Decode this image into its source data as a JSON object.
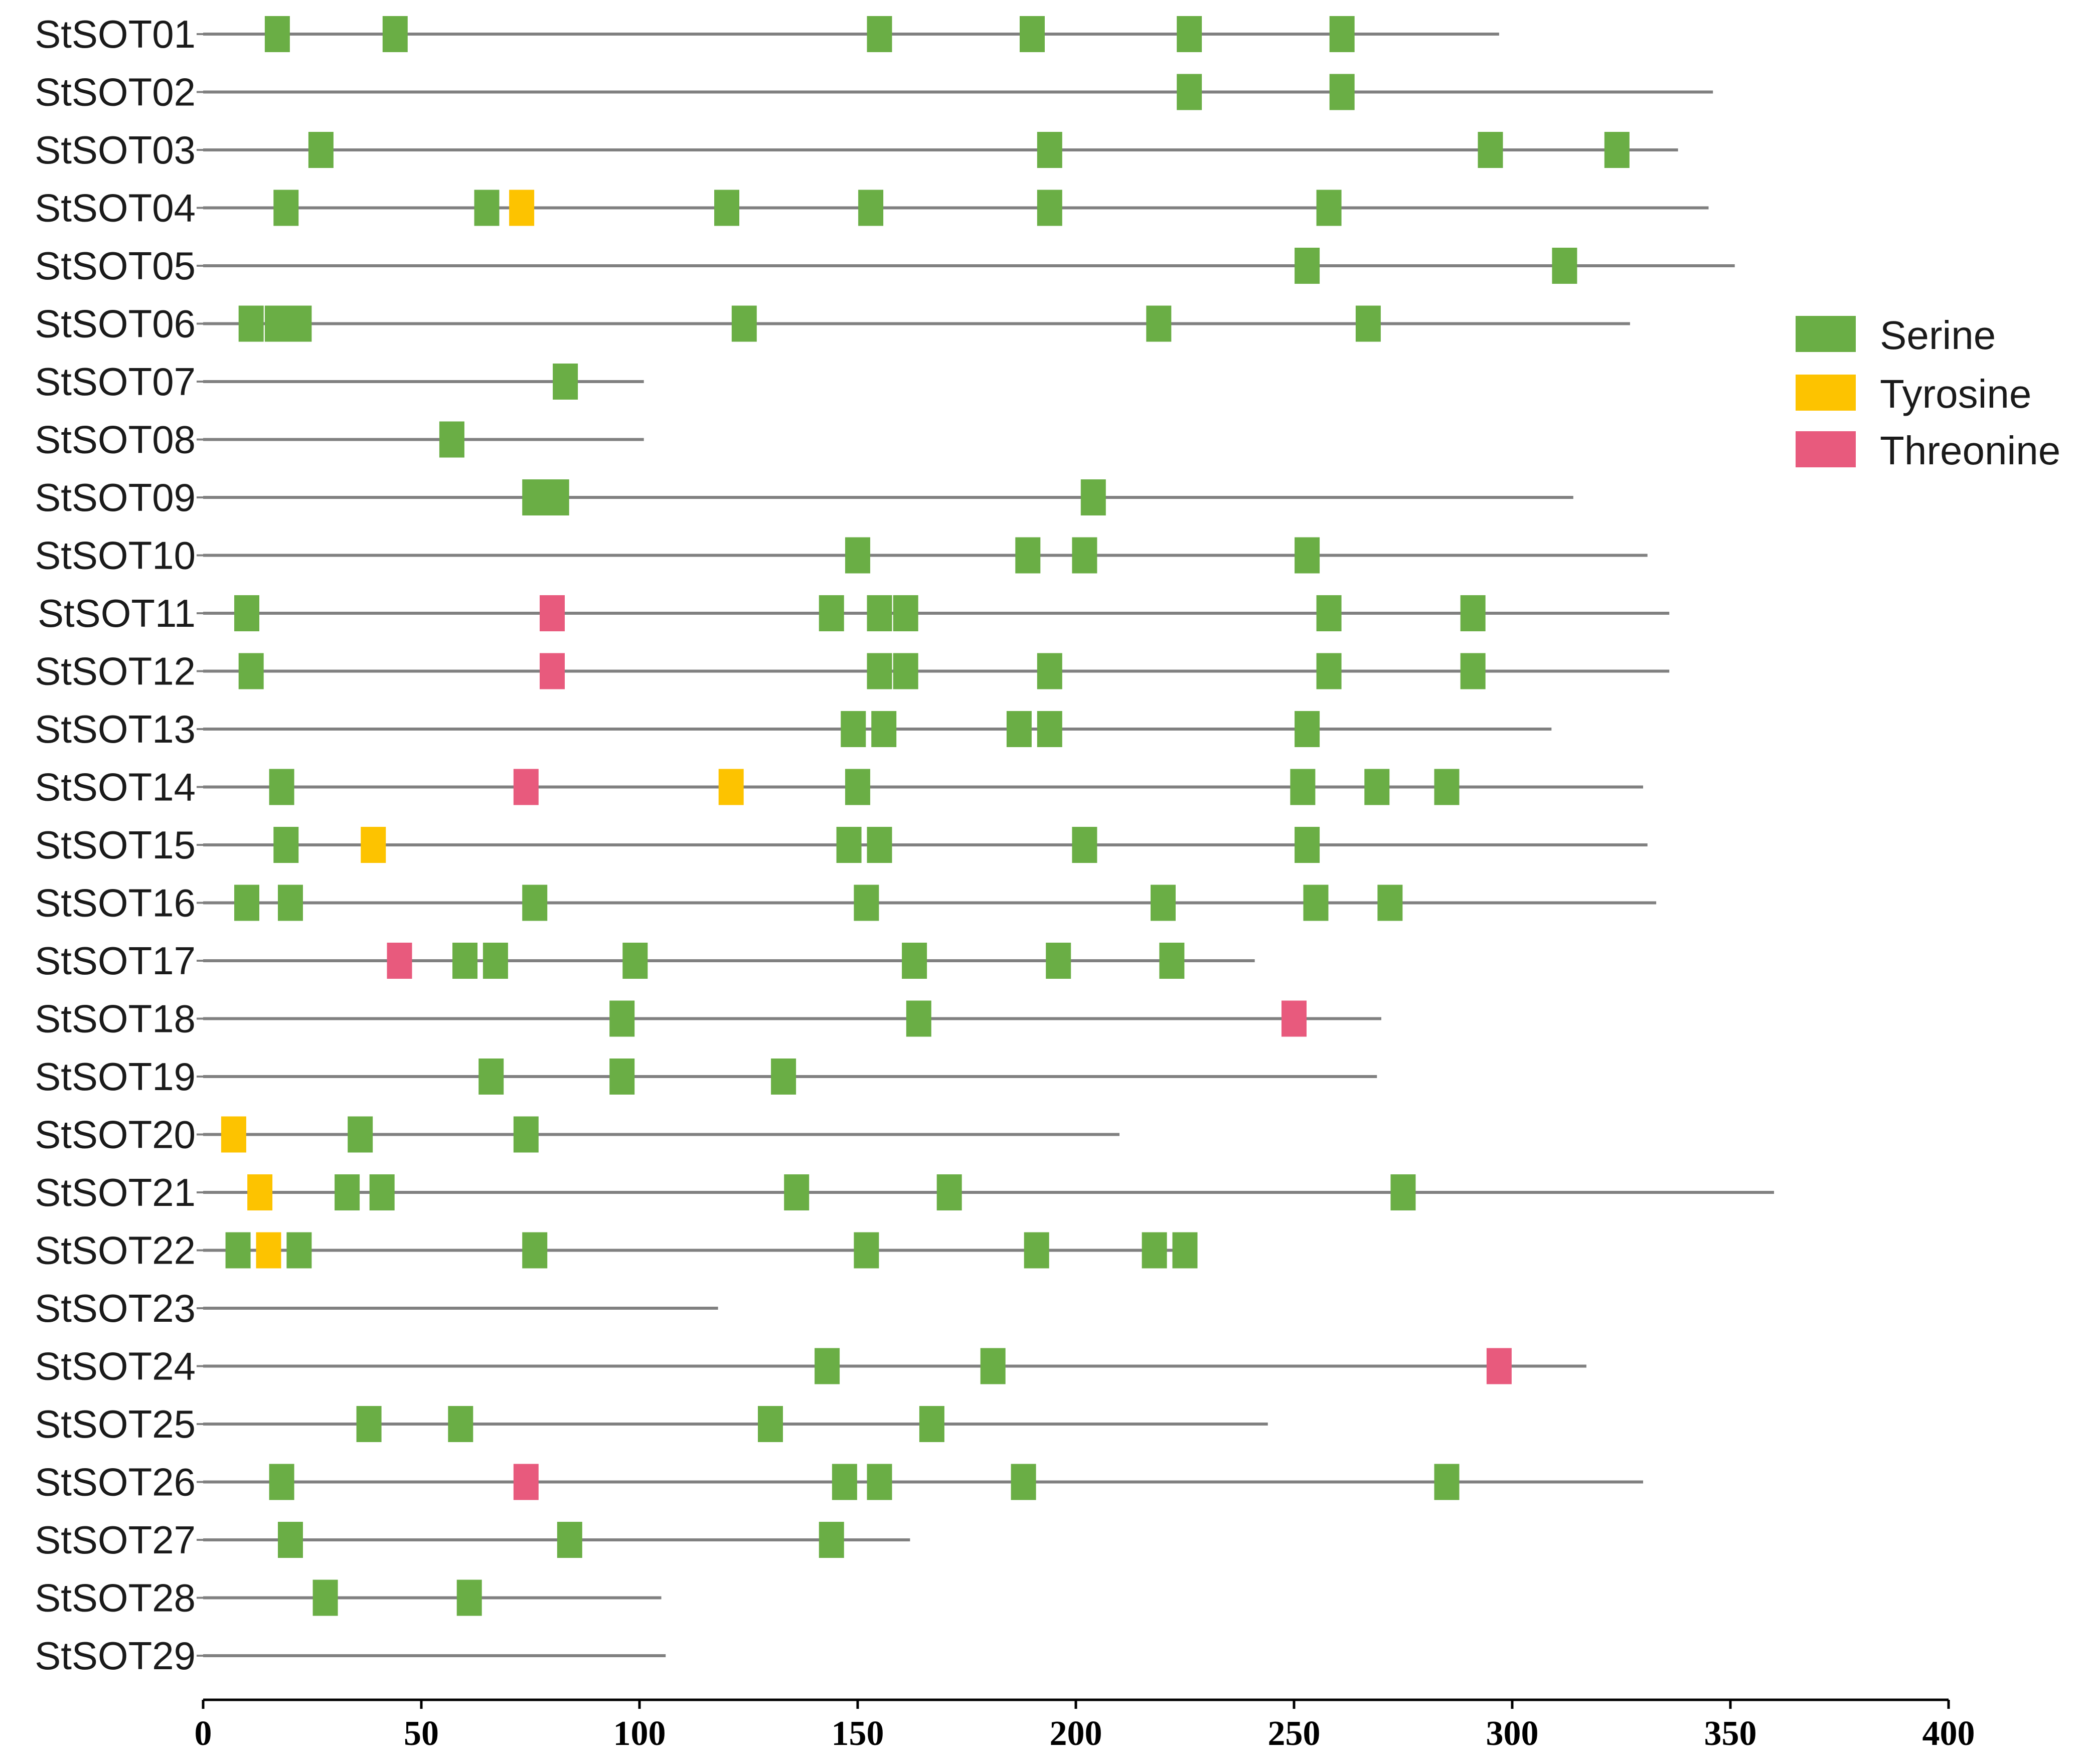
{
  "chart_data": {
    "type": "protein-site-map",
    "title": "",
    "xlabel": "",
    "ylabel": "",
    "xlim": [
      0,
      400
    ],
    "x_ticks": [
      0,
      50,
      100,
      150,
      200,
      250,
      300,
      350,
      400
    ],
    "grid": false,
    "legend_position": "right",
    "legend": [
      {
        "key": "serine",
        "label": "Serine",
        "color": "#6aae45"
      },
      {
        "key": "tyrosine",
        "label": "Tyrosine",
        "color": "#fdc300"
      },
      {
        "key": "threonine",
        "label": "Threonine",
        "color": "#e85a7d"
      }
    ],
    "proteins": [
      {
        "name": "StSOT01",
        "length": 297,
        "sites": [
          {
            "pos": 17,
            "type": "serine"
          },
          {
            "pos": 44,
            "type": "serine"
          },
          {
            "pos": 155,
            "type": "serine"
          },
          {
            "pos": 190,
            "type": "serine"
          },
          {
            "pos": 226,
            "type": "serine"
          },
          {
            "pos": 261,
            "type": "serine"
          }
        ]
      },
      {
        "name": "StSOT02",
        "length": 346,
        "sites": [
          {
            "pos": 226,
            "type": "serine"
          },
          {
            "pos": 261,
            "type": "serine"
          }
        ]
      },
      {
        "name": "StSOT03",
        "length": 338,
        "sites": [
          {
            "pos": 27,
            "type": "serine"
          },
          {
            "pos": 194,
            "type": "serine"
          },
          {
            "pos": 295,
            "type": "serine"
          },
          {
            "pos": 324,
            "type": "serine"
          }
        ]
      },
      {
        "name": "StSOT04",
        "length": 345,
        "sites": [
          {
            "pos": 19,
            "type": "serine"
          },
          {
            "pos": 65,
            "type": "serine"
          },
          {
            "pos": 73,
            "type": "tyrosine"
          },
          {
            "pos": 120,
            "type": "serine"
          },
          {
            "pos": 153,
            "type": "serine"
          },
          {
            "pos": 194,
            "type": "serine"
          },
          {
            "pos": 258,
            "type": "serine"
          }
        ]
      },
      {
        "name": "StSOT05",
        "length": 351,
        "sites": [
          {
            "pos": 253,
            "type": "serine"
          },
          {
            "pos": 312,
            "type": "serine"
          }
        ]
      },
      {
        "name": "StSOT06",
        "length": 327,
        "sites": [
          {
            "pos": 11,
            "type": "serine"
          },
          {
            "pos": 17,
            "type": "serine"
          },
          {
            "pos": 22,
            "type": "serine"
          },
          {
            "pos": 124,
            "type": "serine"
          },
          {
            "pos": 219,
            "type": "serine"
          },
          {
            "pos": 267,
            "type": "serine"
          }
        ]
      },
      {
        "name": "StSOT07",
        "length": 101,
        "sites": [
          {
            "pos": 83,
            "type": "serine"
          }
        ]
      },
      {
        "name": "StSOT08",
        "length": 101,
        "sites": [
          {
            "pos": 57,
            "type": "serine"
          }
        ]
      },
      {
        "name": "StSOT09",
        "length": 314,
        "sites": [
          {
            "pos": 76,
            "type": "serine"
          },
          {
            "pos": 81,
            "type": "serine"
          },
          {
            "pos": 204,
            "type": "serine"
          }
        ]
      },
      {
        "name": "StSOT10",
        "length": 331,
        "sites": [
          {
            "pos": 150,
            "type": "serine"
          },
          {
            "pos": 189,
            "type": "serine"
          },
          {
            "pos": 202,
            "type": "serine"
          },
          {
            "pos": 253,
            "type": "serine"
          }
        ]
      },
      {
        "name": "StSOT11",
        "length": 336,
        "sites": [
          {
            "pos": 10,
            "type": "serine"
          },
          {
            "pos": 80,
            "type": "threonine"
          },
          {
            "pos": 144,
            "type": "serine"
          },
          {
            "pos": 155,
            "type": "serine"
          },
          {
            "pos": 161,
            "type": "serine"
          },
          {
            "pos": 258,
            "type": "serine"
          },
          {
            "pos": 291,
            "type": "serine"
          }
        ]
      },
      {
        "name": "StSOT12",
        "length": 336,
        "sites": [
          {
            "pos": 11,
            "type": "serine"
          },
          {
            "pos": 80,
            "type": "threonine"
          },
          {
            "pos": 155,
            "type": "serine"
          },
          {
            "pos": 161,
            "type": "serine"
          },
          {
            "pos": 194,
            "type": "serine"
          },
          {
            "pos": 258,
            "type": "serine"
          },
          {
            "pos": 291,
            "type": "serine"
          }
        ]
      },
      {
        "name": "StSOT13",
        "length": 309,
        "sites": [
          {
            "pos": 149,
            "type": "serine"
          },
          {
            "pos": 156,
            "type": "serine"
          },
          {
            "pos": 187,
            "type": "serine"
          },
          {
            "pos": 194,
            "type": "serine"
          },
          {
            "pos": 253,
            "type": "serine"
          }
        ]
      },
      {
        "name": "StSOT14",
        "length": 330,
        "sites": [
          {
            "pos": 18,
            "type": "serine"
          },
          {
            "pos": 74,
            "type": "threonine"
          },
          {
            "pos": 121,
            "type": "tyrosine"
          },
          {
            "pos": 150,
            "type": "serine"
          },
          {
            "pos": 252,
            "type": "serine"
          },
          {
            "pos": 269,
            "type": "serine"
          },
          {
            "pos": 285,
            "type": "serine"
          }
        ]
      },
      {
        "name": "StSOT15",
        "length": 331,
        "sites": [
          {
            "pos": 19,
            "type": "serine"
          },
          {
            "pos": 39,
            "type": "tyrosine"
          },
          {
            "pos": 148,
            "type": "serine"
          },
          {
            "pos": 155,
            "type": "serine"
          },
          {
            "pos": 202,
            "type": "serine"
          },
          {
            "pos": 253,
            "type": "serine"
          }
        ]
      },
      {
        "name": "StSOT16",
        "length": 333,
        "sites": [
          {
            "pos": 10,
            "type": "serine"
          },
          {
            "pos": 20,
            "type": "serine"
          },
          {
            "pos": 76,
            "type": "serine"
          },
          {
            "pos": 152,
            "type": "serine"
          },
          {
            "pos": 220,
            "type": "serine"
          },
          {
            "pos": 255,
            "type": "serine"
          },
          {
            "pos": 272,
            "type": "serine"
          }
        ]
      },
      {
        "name": "StSOT17",
        "length": 241,
        "sites": [
          {
            "pos": 45,
            "type": "threonine"
          },
          {
            "pos": 60,
            "type": "serine"
          },
          {
            "pos": 67,
            "type": "serine"
          },
          {
            "pos": 99,
            "type": "serine"
          },
          {
            "pos": 163,
            "type": "serine"
          },
          {
            "pos": 196,
            "type": "serine"
          },
          {
            "pos": 222,
            "type": "serine"
          }
        ]
      },
      {
        "name": "StSOT18",
        "length": 270,
        "sites": [
          {
            "pos": 96,
            "type": "serine"
          },
          {
            "pos": 164,
            "type": "serine"
          },
          {
            "pos": 250,
            "type": "threonine"
          }
        ]
      },
      {
        "name": "StSOT19",
        "length": 269,
        "sites": [
          {
            "pos": 66,
            "type": "serine"
          },
          {
            "pos": 96,
            "type": "serine"
          },
          {
            "pos": 133,
            "type": "serine"
          }
        ]
      },
      {
        "name": "StSOT20",
        "length": 210,
        "sites": [
          {
            "pos": 7,
            "type": "tyrosine"
          },
          {
            "pos": 36,
            "type": "serine"
          },
          {
            "pos": 74,
            "type": "serine"
          }
        ]
      },
      {
        "name": "StSOT21",
        "length": 360,
        "sites": [
          {
            "pos": 13,
            "type": "tyrosine"
          },
          {
            "pos": 33,
            "type": "serine"
          },
          {
            "pos": 41,
            "type": "serine"
          },
          {
            "pos": 136,
            "type": "serine"
          },
          {
            "pos": 171,
            "type": "serine"
          },
          {
            "pos": 275,
            "type": "serine"
          }
        ]
      },
      {
        "name": "StSOT22",
        "length": 226,
        "sites": [
          {
            "pos": 8,
            "type": "serine"
          },
          {
            "pos": 15,
            "type": "tyrosine"
          },
          {
            "pos": 22,
            "type": "serine"
          },
          {
            "pos": 76,
            "type": "serine"
          },
          {
            "pos": 152,
            "type": "serine"
          },
          {
            "pos": 191,
            "type": "serine"
          },
          {
            "pos": 218,
            "type": "serine"
          },
          {
            "pos": 225,
            "type": "serine"
          }
        ]
      },
      {
        "name": "StSOT23",
        "length": 118,
        "sites": []
      },
      {
        "name": "StSOT24",
        "length": 317,
        "sites": [
          {
            "pos": 143,
            "type": "serine"
          },
          {
            "pos": 181,
            "type": "serine"
          },
          {
            "pos": 297,
            "type": "threonine"
          }
        ]
      },
      {
        "name": "StSOT25",
        "length": 244,
        "sites": [
          {
            "pos": 38,
            "type": "serine"
          },
          {
            "pos": 59,
            "type": "serine"
          },
          {
            "pos": 130,
            "type": "serine"
          },
          {
            "pos": 167,
            "type": "serine"
          }
        ]
      },
      {
        "name": "StSOT26",
        "length": 330,
        "sites": [
          {
            "pos": 18,
            "type": "serine"
          },
          {
            "pos": 74,
            "type": "threonine"
          },
          {
            "pos": 147,
            "type": "serine"
          },
          {
            "pos": 155,
            "type": "serine"
          },
          {
            "pos": 188,
            "type": "serine"
          },
          {
            "pos": 285,
            "type": "serine"
          }
        ]
      },
      {
        "name": "StSOT27",
        "length": 162,
        "sites": [
          {
            "pos": 20,
            "type": "serine"
          },
          {
            "pos": 84,
            "type": "serine"
          },
          {
            "pos": 144,
            "type": "serine"
          }
        ]
      },
      {
        "name": "StSOT28",
        "length": 105,
        "sites": [
          {
            "pos": 28,
            "type": "serine"
          },
          {
            "pos": 61,
            "type": "serine"
          }
        ]
      },
      {
        "name": "StSOT29",
        "length": 106,
        "sites": []
      }
    ]
  }
}
